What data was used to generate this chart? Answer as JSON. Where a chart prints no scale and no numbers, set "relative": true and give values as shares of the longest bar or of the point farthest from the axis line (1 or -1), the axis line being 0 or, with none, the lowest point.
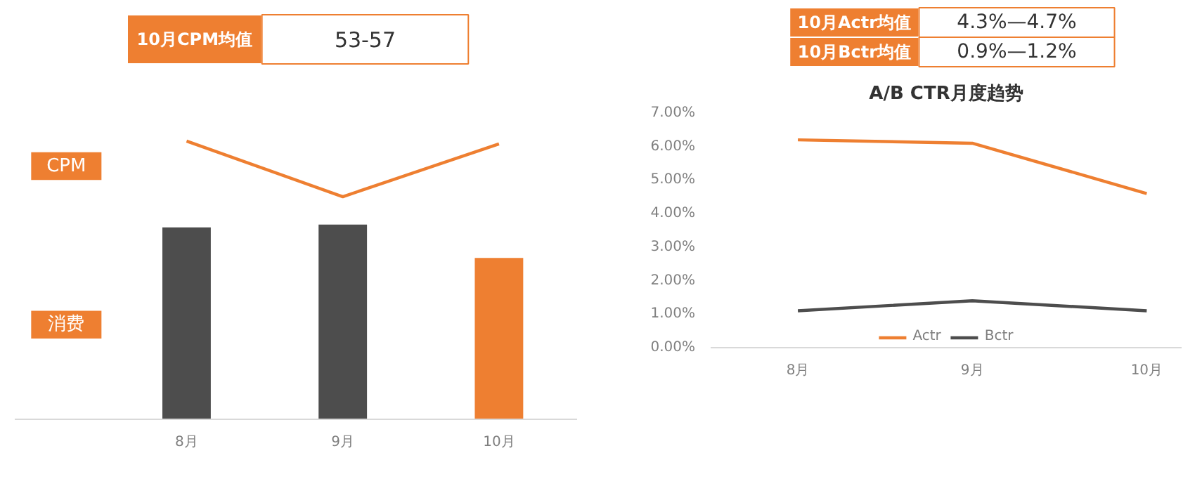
{
  "chart_data": [
    {
      "type": "other",
      "annotations": [
        "10月CPM均值",
        "53-57"
      ]
    },
    {
      "type": "other",
      "annotations": [
        "10月Actr均值",
        "4.3%—4.7%",
        "10月Bctr均值",
        "0.9%—1.2%"
      ]
    },
    {
      "type": "bar",
      "relative": true,
      "categories": [
        "8月",
        "9月",
        "10月"
      ],
      "legend": "left",
      "grid": false,
      "series": [
        {
          "name": "消费",
          "type": "bar",
          "colors": [
            "#4d4d4d",
            "#4d4d4d",
            "#ee7f31"
          ],
          "values": [
            0.69,
            0.7,
            0.58
          ]
        },
        {
          "name": "CPM",
          "type": "line",
          "color": "#ee7f31",
          "values": [
            1,
            0.8,
            0.99
          ]
        }
      ]
    },
    {
      "type": "line",
      "title": "A/B CTR月度趋势",
      "categories": [
        "8月",
        "9月",
        "10月"
      ],
      "ylim": [
        0,
        7
      ],
      "yticks": [
        {
          "value": 0,
          "label": "0.00%"
        },
        {
          "value": 1,
          "label": "1.00%"
        },
        {
          "value": 2,
          "label": "2.00%"
        },
        {
          "value": 3,
          "label": "3.00%"
        },
        {
          "value": 4,
          "label": "4.00%"
        },
        {
          "value": 5,
          "label": "5.00%"
        },
        {
          "value": 6,
          "label": "6.00%"
        },
        {
          "value": 7,
          "label": "7.00%"
        }
      ],
      "grid": false,
      "legend": "bottom",
      "series": [
        {
          "name": "Actr",
          "color": "#ee7f31",
          "values": [
            6.2,
            6.1,
            4.6
          ]
        },
        {
          "name": "Bctr",
          "color": "#4d4d4d",
          "values": [
            1.1,
            1.4,
            1.1
          ]
        }
      ]
    }
  ]
}
